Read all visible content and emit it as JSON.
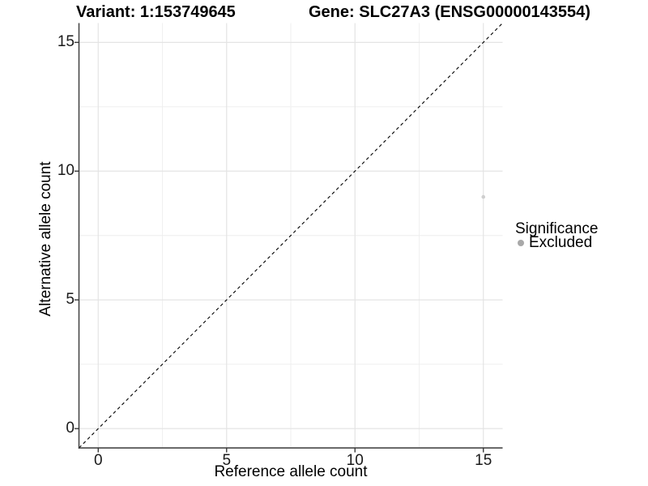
{
  "title": {
    "variant": "Variant: 1:153749645",
    "gene": "Gene: SLC27A3 (ENSG00000143554)"
  },
  "axes": {
    "x_label": "Reference allele count",
    "y_label": "Alternative allele count"
  },
  "legend": {
    "title": "Significance",
    "items": [
      {
        "label": "Excluded",
        "color": "#a8a8a8"
      }
    ]
  },
  "chart_data": {
    "type": "scatter",
    "title": "Variant: 1:153749645    Gene: SLC27A3 (ENSG00000143554)",
    "xlabel": "Reference allele count",
    "ylabel": "Alternative allele count",
    "xlim": [
      -0.75,
      15.75
    ],
    "ylim": [
      -0.75,
      15.75
    ],
    "x_major_ticks": [
      0,
      5,
      10,
      15
    ],
    "y_major_ticks": [
      0,
      5,
      10,
      15
    ],
    "x_minor_ticks": [
      2.5,
      7.5,
      12.5
    ],
    "y_minor_ticks": [
      2.5,
      7.5,
      12.5
    ],
    "grid": "major and minor, light gray on white panel",
    "legend_position": "right",
    "reference_line": {
      "type": "identity y=x",
      "style": "dashed",
      "color": "#000000"
    },
    "series": [
      {
        "name": "Excluded",
        "color": "#cfcfcf",
        "points": [
          [
            15,
            9
          ]
        ]
      }
    ]
  },
  "colors": {
    "background": "#ffffff",
    "grid_major": "#e4e4e4",
    "grid_minor": "#eeeeee",
    "axis_line": "#383838",
    "tick_text": "#1a1a1a",
    "title_text": "#000000",
    "point_fill": "#cfcfcf",
    "legend_dot": "#a8a8a8"
  }
}
